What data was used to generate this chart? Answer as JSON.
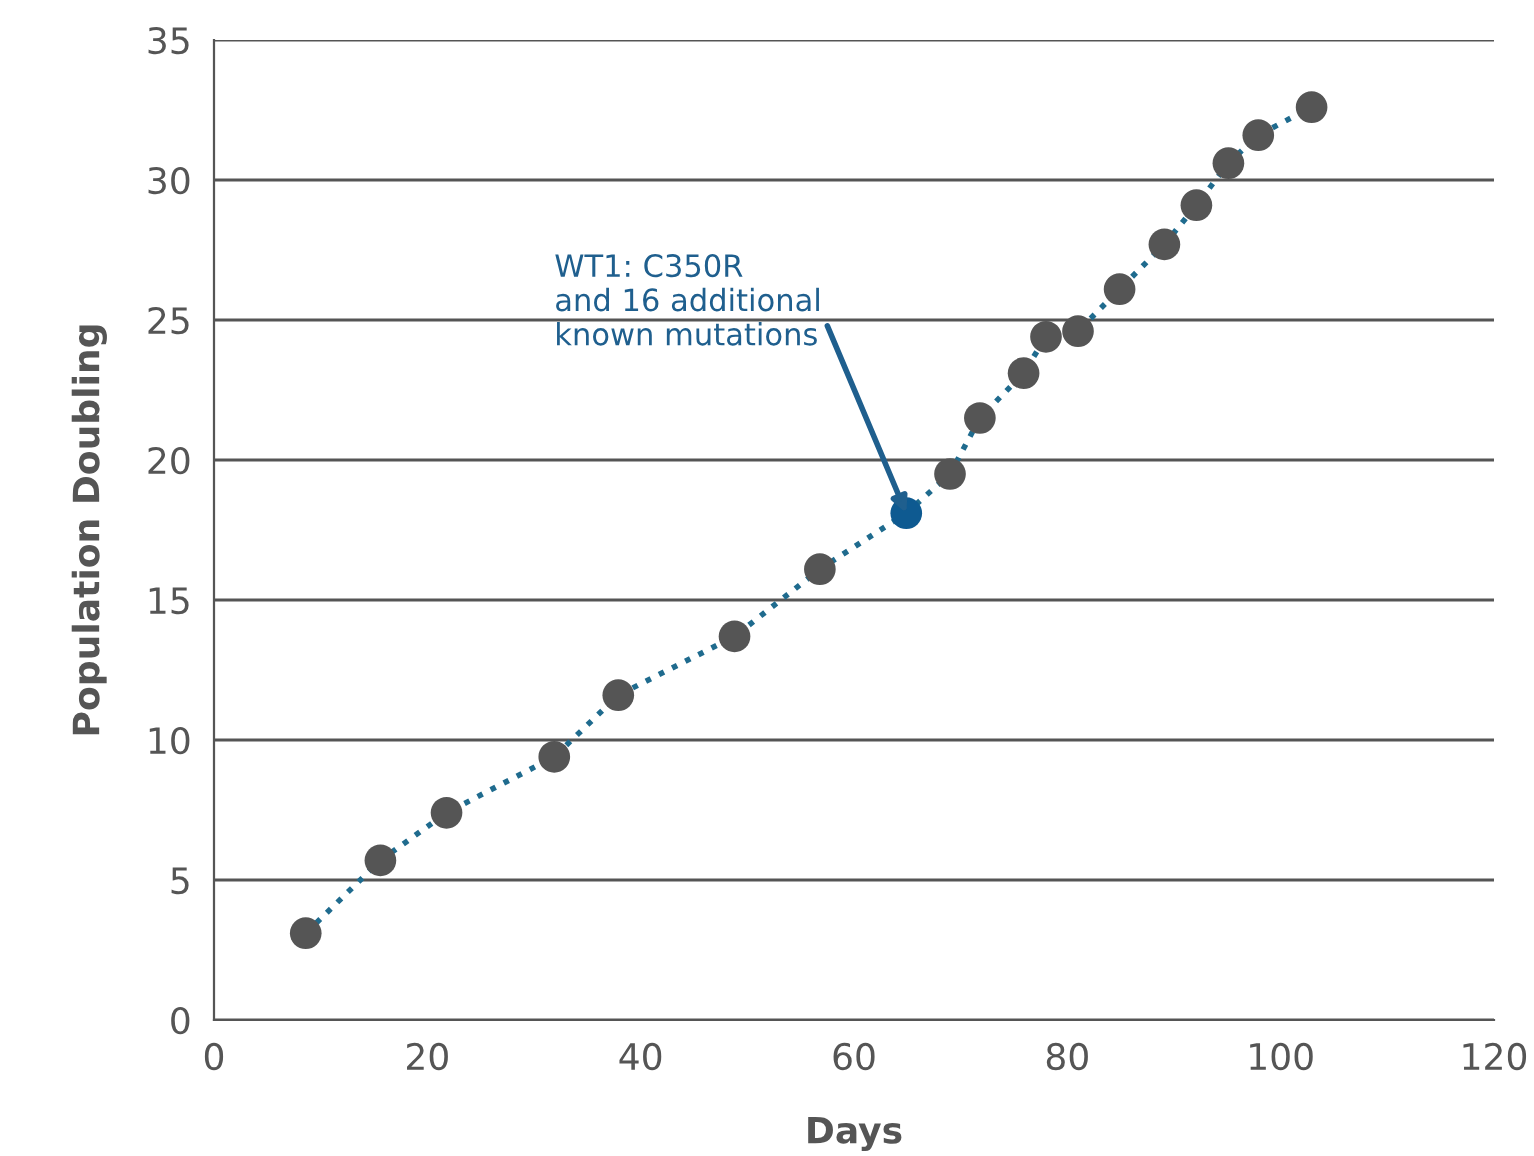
{
  "chart_data": {
    "type": "line",
    "xlabel": "Days",
    "ylabel": "Population Doubling",
    "x": [
      8.6,
      15.6,
      21.8,
      31.9,
      37.9,
      48.8,
      56.8,
      64.9,
      69,
      71.8,
      75.9,
      78,
      81,
      84.9,
      89.1,
      92.1,
      95.1,
      97.9,
      102.9
    ],
    "series": [
      {
        "color": "#1f6b8e",
        "values": [
          3.1,
          5.7,
          7.4,
          9.4,
          11.6,
          13.7,
          16.1,
          18.1,
          19.5,
          21.5,
          23.1,
          24.4,
          24.6,
          26.1,
          27.7,
          29.1,
          30.6,
          31.6,
          32.6
        ],
        "colors": [
          "#555555",
          "#555555",
          "#555555",
          "#555555",
          "#555555",
          "#555555",
          "#555555",
          "#0e5a91",
          "#555555",
          "#555555",
          "#555555",
          "#555555",
          "#555555",
          "#555555",
          "#555555",
          "#555555",
          "#555555",
          "#555555",
          "#555555"
        ]
      }
    ],
    "marker": "circle",
    "line_style": "dotted",
    "grid": "y",
    "legend": false,
    "xlim": [
      0,
      120
    ],
    "xticks": [
      0,
      20,
      40,
      60,
      80,
      100,
      120
    ],
    "ylim": [
      0,
      35
    ],
    "yticks": [
      0,
      5,
      10,
      15,
      20,
      25,
      30,
      35
    ],
    "annotations": [
      {
        "text": "WT1: C350R\nand 16 additional\nknown mutations",
        "x": 64.9,
        "y": 18.1
      }
    ]
  }
}
